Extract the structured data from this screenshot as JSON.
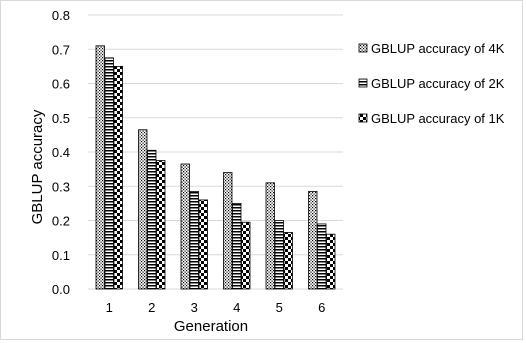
{
  "chart_data": {
    "type": "bar",
    "xlabel": "Generation",
    "ylabel": "GBLUP accuracy",
    "categories": [
      "1",
      "2",
      "3",
      "4",
      "5",
      "6"
    ],
    "ylim": [
      0.0,
      0.8
    ],
    "yticks": [
      "0.0",
      "0.1",
      "0.2",
      "0.3",
      "0.4",
      "0.5",
      "0.6",
      "0.7",
      "0.8"
    ],
    "grid": "horizontal",
    "legend_position": "right",
    "series": [
      {
        "name": "GBLUP accuracy of 4K",
        "pattern": "dotted",
        "values": [
          0.71,
          0.465,
          0.365,
          0.34,
          0.31,
          0.285
        ]
      },
      {
        "name": "GBLUP accuracy of 2K",
        "pattern": "horizontal-lines",
        "values": [
          0.675,
          0.405,
          0.285,
          0.25,
          0.2,
          0.19
        ]
      },
      {
        "name": "GBLUP accuracy of 1K",
        "pattern": "checker",
        "values": [
          0.65,
          0.375,
          0.26,
          0.195,
          0.165,
          0.16
        ]
      }
    ],
    "colors": {
      "axis": "#d9d9d9",
      "grid": "#d9d9d9",
      "bar_stroke": "#000000"
    }
  }
}
